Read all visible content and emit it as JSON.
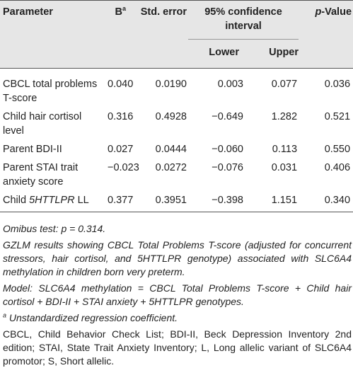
{
  "table": {
    "header": {
      "parameter": "Parameter",
      "b": "B",
      "b_note": "a",
      "std_error": "Std. error",
      "ci": "95% confidence interval",
      "lower": "Lower",
      "upper": "Upper",
      "p_italic": "p",
      "p_rest": "-Value"
    },
    "rows": [
      [
        [
          "CBCL total problems T-score"
        ],
        "0.040",
        "0.0190",
        "0.003",
        "0.077",
        "0.036"
      ],
      [
        [
          "Child hair cortisol level"
        ],
        "0.316",
        "0.4928",
        "−0.649",
        "1.282",
        "0.521"
      ],
      [
        [
          "Parent BDI-II"
        ],
        "0.027",
        "0.0444",
        "−0.060",
        "0.113",
        "0.550"
      ],
      [
        [
          "Parent STAI trait anxiety score"
        ],
        "−0.023",
        "0.0272",
        "−0.076",
        "0.031",
        "0.406"
      ],
      [
        [
          "Child ",
          "5HTTLPR",
          " LL"
        ],
        "0.377",
        "0.3951",
        "−0.398",
        "1.151",
        "0.340"
      ]
    ],
    "footnotes": {
      "omnibus": "Omibus test: p = 0.314.",
      "gzlm": "GZLM results showing CBCL Total Problems T-score (adjusted for concurrent stressors, hair cortisol, and 5HTTLPR genotype) associated with SLC6A4 methylation in children born very preterm.",
      "model": "Model: SLC6A4 methylation = CBCL Total Problems T-score + Child hair cortisol + BDI-II + STAI anxiety + 5HTTLPR genotypes.",
      "note_mark": "a",
      "note_text": "Unstandardized regression coefficient.",
      "abbreviations": "CBCL, Child Behavior Check List; BDI-II, Beck Depression Inventory 2nd edition; STAI, State Trait Anxiety Inventory; L, Long allelic variant of SLC6A4 promotor; S, Short allelic."
    }
  }
}
